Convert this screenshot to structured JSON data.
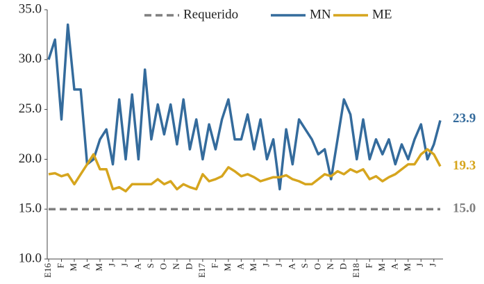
{
  "chart_data": {
    "type": "line",
    "categories": [
      "E16",
      null,
      "F",
      null,
      "M",
      null,
      "A",
      null,
      "M",
      null,
      "J",
      null,
      "J",
      null,
      "A",
      null,
      "S",
      null,
      "O",
      null,
      "N",
      null,
      "D",
      null,
      "E17",
      null,
      "F",
      null,
      "M",
      null,
      "A",
      null,
      "M",
      null,
      "J",
      null,
      "J",
      null,
      "A",
      null,
      "S",
      null,
      "O",
      null,
      "N",
      null,
      "D",
      null,
      "E18",
      null,
      "F",
      null,
      "M",
      null,
      "A",
      null,
      "M",
      null,
      "J",
      null,
      "J",
      null
    ],
    "series": [
      {
        "name": "Requerido",
        "color": "#7f7f7f",
        "dash": true,
        "values": [
          15,
          15,
          15,
          15,
          15,
          15,
          15,
          15,
          15,
          15,
          15,
          15,
          15,
          15,
          15,
          15,
          15,
          15,
          15,
          15,
          15,
          15,
          15,
          15,
          15,
          15,
          15,
          15,
          15,
          15,
          15,
          15,
          15,
          15,
          15,
          15,
          15,
          15,
          15,
          15,
          15,
          15,
          15,
          15,
          15,
          15,
          15,
          15,
          15,
          15,
          15,
          15,
          15,
          15,
          15,
          15,
          15,
          15,
          15,
          15,
          15,
          15
        ],
        "value_labels": [
          null,
          null,
          null,
          null,
          null,
          null,
          null,
          null,
          null,
          null,
          null,
          null,
          null,
          null,
          null,
          null,
          null,
          null,
          null,
          null,
          null,
          null,
          null,
          null,
          null,
          null,
          null,
          null,
          null,
          null,
          null,
          null,
          null,
          null,
          null,
          null,
          null,
          null,
          null,
          null,
          null,
          null,
          null,
          null,
          null,
          null,
          null,
          null,
          null,
          null,
          null,
          null,
          null,
          null,
          null,
          null,
          null,
          null,
          null,
          null,
          null,
          "15.0"
        ]
      },
      {
        "name": "MN",
        "color": "#346b9c",
        "values": [
          30,
          32,
          24,
          33.5,
          27,
          27,
          19.5,
          20,
          22,
          23,
          19.5,
          26,
          20,
          26.5,
          20,
          29,
          22,
          25.5,
          22.5,
          25.5,
          21.5,
          26,
          21,
          24,
          20,
          23.5,
          21,
          24,
          26,
          22,
          22,
          24.5,
          21,
          24,
          20,
          22,
          17,
          23,
          19.5,
          24,
          23,
          22,
          20.5,
          21,
          18,
          22,
          26,
          24.5,
          20,
          24,
          20,
          22,
          20.5,
          22,
          19.5,
          21.5,
          20,
          22,
          23.5,
          20,
          21.5,
          23.9
        ],
        "value_labels": [
          null,
          null,
          null,
          null,
          null,
          null,
          null,
          null,
          null,
          null,
          null,
          null,
          null,
          null,
          null,
          null,
          null,
          null,
          null,
          null,
          null,
          null,
          null,
          null,
          null,
          null,
          null,
          null,
          null,
          null,
          null,
          null,
          null,
          null,
          null,
          null,
          null,
          null,
          null,
          null,
          null,
          null,
          null,
          null,
          null,
          null,
          null,
          null,
          null,
          null,
          null,
          null,
          null,
          null,
          null,
          null,
          null,
          null,
          null,
          null,
          null,
          "23.9"
        ]
      },
      {
        "name": "ME",
        "color": "#d6a51e",
        "values": [
          18.5,
          18.6,
          18.3,
          18.5,
          17.5,
          18.5,
          19.5,
          20.5,
          19,
          19,
          17,
          17.2,
          16.8,
          17.5,
          17.5,
          17.5,
          17.5,
          18,
          17.5,
          17.8,
          17,
          17.5,
          17.2,
          17,
          18.5,
          17.8,
          18,
          18.3,
          19.2,
          18.8,
          18.3,
          18.5,
          18.2,
          17.8,
          18,
          18.2,
          18.2,
          18.4,
          18,
          17.8,
          17.5,
          17.5,
          18,
          18.5,
          18.3,
          18.8,
          18.5,
          19,
          18.7,
          19,
          18,
          18.3,
          17.8,
          18.2,
          18.5,
          19,
          19.5,
          19.5,
          20.5,
          21,
          20.5,
          19.3
        ],
        "value_labels": [
          null,
          null,
          null,
          null,
          null,
          null,
          null,
          null,
          null,
          null,
          null,
          null,
          null,
          null,
          null,
          null,
          null,
          null,
          null,
          null,
          null,
          null,
          null,
          null,
          null,
          null,
          null,
          null,
          null,
          null,
          null,
          null,
          null,
          null,
          null,
          null,
          null,
          null,
          null,
          null,
          null,
          null,
          null,
          null,
          null,
          null,
          null,
          null,
          null,
          null,
          null,
          null,
          null,
          null,
          null,
          null,
          null,
          null,
          null,
          null,
          null,
          "19.3"
        ]
      }
    ],
    "ylim": [
      10,
      35
    ],
    "yticks": [
      {
        "value": 10,
        "label": "10.0"
      },
      {
        "value": 15,
        "label": "15.0"
      },
      {
        "value": 20,
        "label": "20.0"
      },
      {
        "value": 25,
        "label": "25.0"
      },
      {
        "value": 30,
        "label": "30.0"
      },
      {
        "value": 35,
        "label": "35.0"
      }
    ],
    "legend": "top",
    "grid": false
  }
}
